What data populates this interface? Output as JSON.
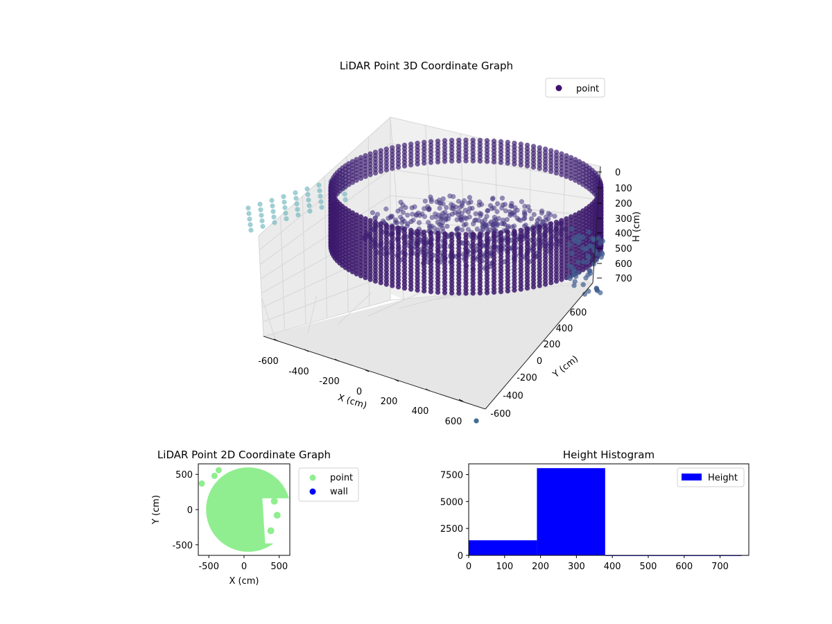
{
  "chart_data": [
    {
      "type": "scatter",
      "title": "LiDAR Point 3D Coordinate Graph",
      "xlabel": "X (cm)",
      "ylabel": "Y (cm)",
      "zlabel": "H (cm)",
      "xlim": [
        -700,
        700
      ],
      "ylim": [
        -700,
        700
      ],
      "zlim": [
        0,
        780
      ],
      "z_inverted": true,
      "xticks": [
        "-600",
        "-400",
        "-200",
        "0",
        "200",
        "400",
        "600"
      ],
      "yticks": [
        "-600",
        "-400",
        "-200",
        "0",
        "200",
        "400",
        "600"
      ],
      "zticks": [
        "0",
        "100",
        "200",
        "300",
        "400",
        "500",
        "600",
        "700"
      ],
      "legend": {
        "entries": [
          {
            "label": "point",
            "color": "#440f6e"
          }
        ],
        "placement": "top-right"
      },
      "colormap": "viridis",
      "grid": true,
      "series": [
        {
          "name": "point",
          "shapes": [
            {
              "kind": "wall",
              "radius": 520,
              "h_top": 40,
              "h_bottom": 380,
              "color": "#3e1f72"
            },
            {
              "kind": "floor-cluster",
              "x_range": [
                -450,
                400
              ],
              "y_range": [
                -400,
                420
              ],
              "h_range": [
                180,
                380
              ],
              "color": "#45347f"
            },
            {
              "kind": "outer-points",
              "x": -720,
              "y_range": [
                -50,
                380
              ],
              "h_range": [
                140,
                340
              ],
              "color": "#6fb6bd"
            }
          ]
        }
      ]
    },
    {
      "type": "scatter",
      "title": "LiDAR Point 2D Coordinate Graph",
      "xlabel": "X (cm)",
      "ylabel": "Y (cm)",
      "xlim": [
        -650,
        650
      ],
      "ylim": [
        -650,
        650
      ],
      "xticks": [
        "-500",
        "0",
        "500"
      ],
      "yticks": [
        "-500",
        "0",
        "500"
      ],
      "legend": {
        "entries": [
          {
            "label": "point",
            "color": "#90ee90"
          },
          {
            "label": "wall",
            "color": "#0000ff"
          }
        ],
        "placement": "outside-right"
      },
      "series": [
        {
          "name": "point",
          "color": "#90ee90",
          "disc": {
            "cx": 60,
            "cy": 0,
            "r": 600
          },
          "cut": [
            [
              260,
              160
            ],
            [
              650,
              160
            ],
            [
              650,
              -480
            ],
            [
              300,
              -480
            ]
          ]
        },
        {
          "name": "wall",
          "color": "#0000ff",
          "points": []
        }
      ]
    },
    {
      "type": "bar",
      "title": "Height Histogram",
      "xlabel": "",
      "ylabel": "",
      "xlim": [
        0,
        780
      ],
      "ylim": [
        0,
        8500
      ],
      "xticks": [
        "0",
        "100",
        "200",
        "300",
        "400",
        "500",
        "600",
        "700"
      ],
      "yticks": [
        "0",
        "2500",
        "5000",
        "7500"
      ],
      "legend": {
        "entries": [
          {
            "label": "Height",
            "color": "#0000ff"
          }
        ],
        "placement": "top-right"
      },
      "series": [
        {
          "name": "Height",
          "color": "#0000ff",
          "bins": [
            [
              0,
              190
            ],
            [
              190,
              380
            ],
            [
              380,
              570
            ],
            [
              570,
              760
            ],
            [
              760,
              780
            ]
          ],
          "values": [
            1400,
            8100,
            5,
            5,
            30
          ]
        }
      ]
    }
  ]
}
